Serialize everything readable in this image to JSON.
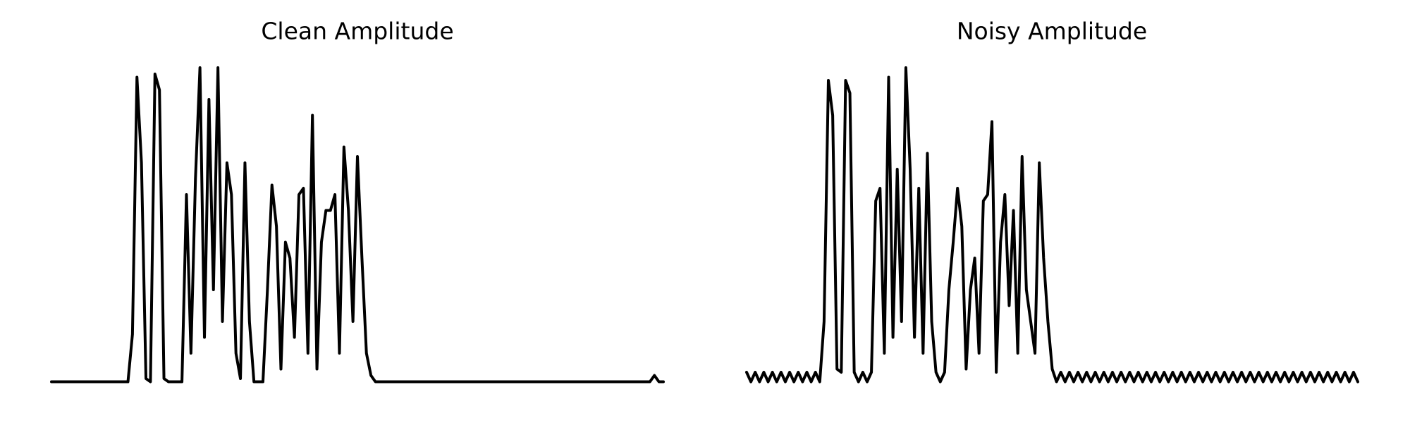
{
  "chart_data": [
    {
      "type": "line",
      "title": "Clean Amplitude",
      "color": "#000000",
      "ylim": [
        0,
        1
      ],
      "values": [
        0.01,
        0.01,
        0.01,
        0.01,
        0.01,
        0.01,
        0.01,
        0.01,
        0.01,
        0.01,
        0.01,
        0.01,
        0.01,
        0.01,
        0.01,
        0.01,
        0.01,
        0.01,
        0.16,
        0.97,
        0.7,
        0.02,
        0.01,
        0.98,
        0.93,
        0.02,
        0.01,
        0.01,
        0.01,
        0.01,
        0.6,
        0.1,
        0.65,
        1.0,
        0.15,
        0.9,
        0.3,
        1.0,
        0.2,
        0.7,
        0.6,
        0.1,
        0.02,
        0.7,
        0.2,
        0.01,
        0.01,
        0.01,
        0.3,
        0.63,
        0.5,
        0.05,
        0.45,
        0.4,
        0.15,
        0.6,
        0.62,
        0.1,
        0.85,
        0.05,
        0.45,
        0.55,
        0.55,
        0.6,
        0.1,
        0.75,
        0.55,
        0.2,
        0.72,
        0.4,
        0.1,
        0.03,
        0.01,
        0.01,
        0.01,
        0.01,
        0.01,
        0.01,
        0.01,
        0.01,
        0.01,
        0.01,
        0.01,
        0.01,
        0.01,
        0.01,
        0.01,
        0.01,
        0.01,
        0.01,
        0.01,
        0.01,
        0.01,
        0.01,
        0.01,
        0.01,
        0.01,
        0.01,
        0.01,
        0.01,
        0.01,
        0.01,
        0.01,
        0.01,
        0.01,
        0.01,
        0.01,
        0.01,
        0.01,
        0.01,
        0.01,
        0.01,
        0.01,
        0.01,
        0.01,
        0.01,
        0.01,
        0.01,
        0.01,
        0.01,
        0.01,
        0.01,
        0.01,
        0.01,
        0.01,
        0.01,
        0.01,
        0.01,
        0.01,
        0.01,
        0.01,
        0.01,
        0.01,
        0.01,
        0.03,
        0.01,
        0.01
      ]
    },
    {
      "type": "line",
      "title": "Noisy Amplitude",
      "color": "#000000",
      "ylim": [
        0,
        1
      ],
      "values": [
        0.04,
        0.01,
        0.04,
        0.01,
        0.04,
        0.01,
        0.04,
        0.01,
        0.04,
        0.01,
        0.04,
        0.01,
        0.04,
        0.01,
        0.04,
        0.01,
        0.04,
        0.01,
        0.2,
        0.96,
        0.85,
        0.05,
        0.04,
        0.96,
        0.92,
        0.04,
        0.01,
        0.04,
        0.01,
        0.04,
        0.58,
        0.62,
        0.1,
        0.97,
        0.15,
        0.68,
        0.2,
        1.0,
        0.68,
        0.15,
        0.62,
        0.1,
        0.73,
        0.2,
        0.04,
        0.01,
        0.04,
        0.3,
        0.45,
        0.62,
        0.5,
        0.05,
        0.3,
        0.4,
        0.1,
        0.58,
        0.6,
        0.83,
        0.04,
        0.45,
        0.6,
        0.25,
        0.55,
        0.1,
        0.72,
        0.3,
        0.2,
        0.1,
        0.7,
        0.4,
        0.2,
        0.05,
        0.01,
        0.04,
        0.01,
        0.04,
        0.01,
        0.04,
        0.01,
        0.04,
        0.01,
        0.04,
        0.01,
        0.04,
        0.01,
        0.04,
        0.01,
        0.04,
        0.01,
        0.04,
        0.01,
        0.04,
        0.01,
        0.04,
        0.01,
        0.04,
        0.01,
        0.04,
        0.01,
        0.04,
        0.01,
        0.04,
        0.01,
        0.04,
        0.01,
        0.04,
        0.01,
        0.04,
        0.01,
        0.04,
        0.01,
        0.04,
        0.01,
        0.04,
        0.01,
        0.04,
        0.01,
        0.04,
        0.01,
        0.04,
        0.01,
        0.04,
        0.01,
        0.04,
        0.01,
        0.04,
        0.01,
        0.04,
        0.01,
        0.04,
        0.01,
        0.04,
        0.01,
        0.04,
        0.01,
        0.04,
        0.01,
        0.04,
        0.01,
        0.04,
        0.01,
        0.04,
        0.01
      ]
    }
  ]
}
